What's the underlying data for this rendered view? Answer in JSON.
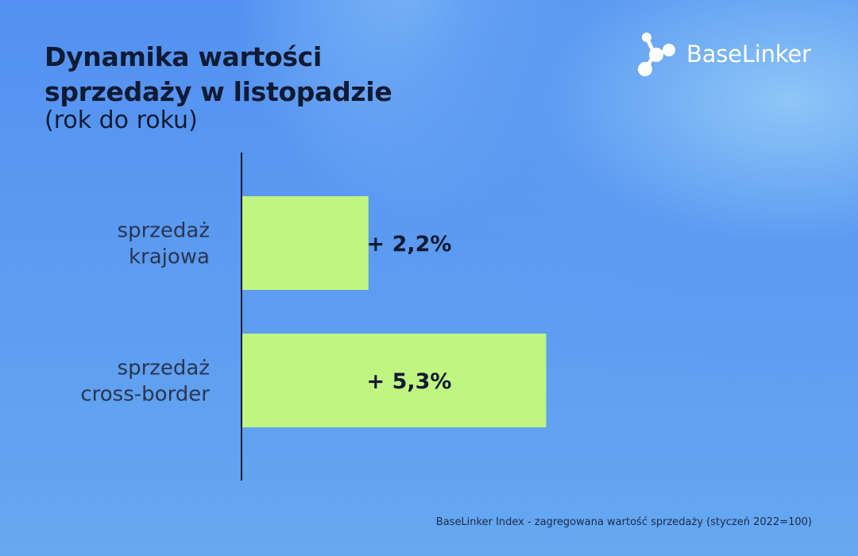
{
  "header": {
    "title": "Dynamika wartości sprzedaży w listopadzie",
    "subtitle": "(rok do roku)"
  },
  "brand": {
    "name": "BaseLinker",
    "icon": "baselinker-logo-icon"
  },
  "chart_data": {
    "type": "bar",
    "orientation": "horizontal",
    "title": "Dynamika wartości sprzedaży w listopadzie",
    "subtitle": "(rok do roku)",
    "categories": [
      [
        "sprzedaż",
        "krajowa"
      ],
      [
        "sprzedaż",
        "cross-border"
      ]
    ],
    "values": [
      2.2,
      5.3
    ],
    "value_labels": [
      "+ 2,2%",
      "+ 5,3%"
    ],
    "xlim": [
      0,
      9.7
    ],
    "bar_color": "#c0f582",
    "axis_color": "#0f1a33",
    "grid": false,
    "legend": "none"
  },
  "footer": {
    "source": "BaseLinker Index - zagregowana wartość sprzedaży (styczeń 2022=100)"
  }
}
